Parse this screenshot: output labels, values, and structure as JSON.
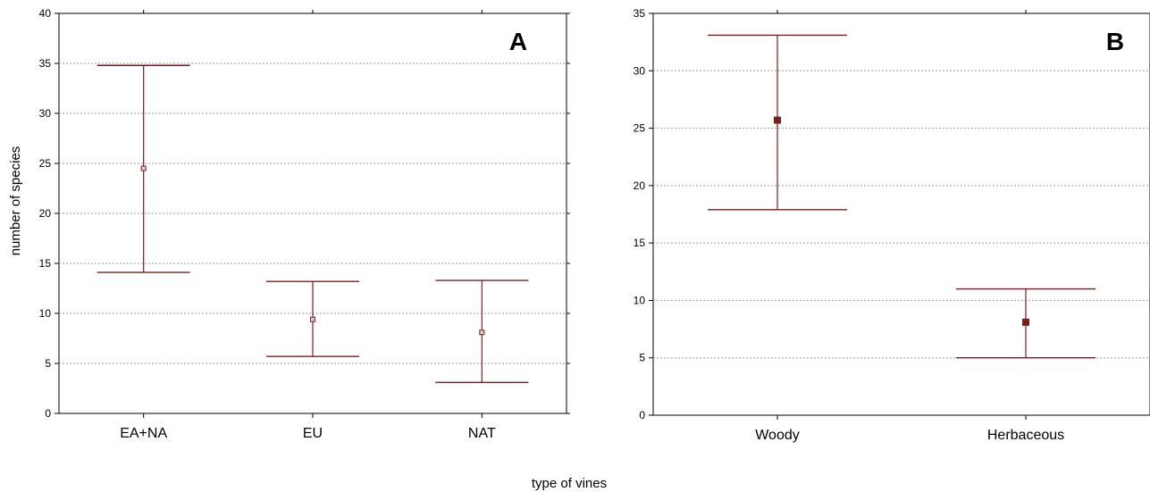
{
  "figure": {
    "ylabel": "number of species",
    "xlabel": "type of vines"
  },
  "chart_data": [
    {
      "type": "errorbar",
      "panel_label": "A",
      "categories": [
        "EA+NA",
        "EU",
        "NAT"
      ],
      "mean": [
        24.5,
        9.4,
        8.1
      ],
      "lower": [
        14.1,
        5.7,
        3.1
      ],
      "upper": [
        34.8,
        13.2,
        13.3
      ],
      "ylim": [
        0,
        40
      ],
      "yticks": [
        0,
        5,
        10,
        15,
        20,
        25,
        30,
        35,
        40
      ],
      "grid": true,
      "marker": "open-square",
      "color": "#7a1f1f"
    },
    {
      "type": "errorbar",
      "panel_label": "B",
      "categories": [
        "Woody",
        "Herbaceous"
      ],
      "mean": [
        25.7,
        8.1
      ],
      "lower": [
        17.9,
        5.0
      ],
      "upper": [
        33.1,
        11.0
      ],
      "ylim": [
        0,
        35
      ],
      "yticks": [
        0,
        5,
        10,
        15,
        20,
        25,
        30,
        35
      ],
      "grid": true,
      "marker": "filled-square",
      "color": "#7a1f1f"
    }
  ]
}
